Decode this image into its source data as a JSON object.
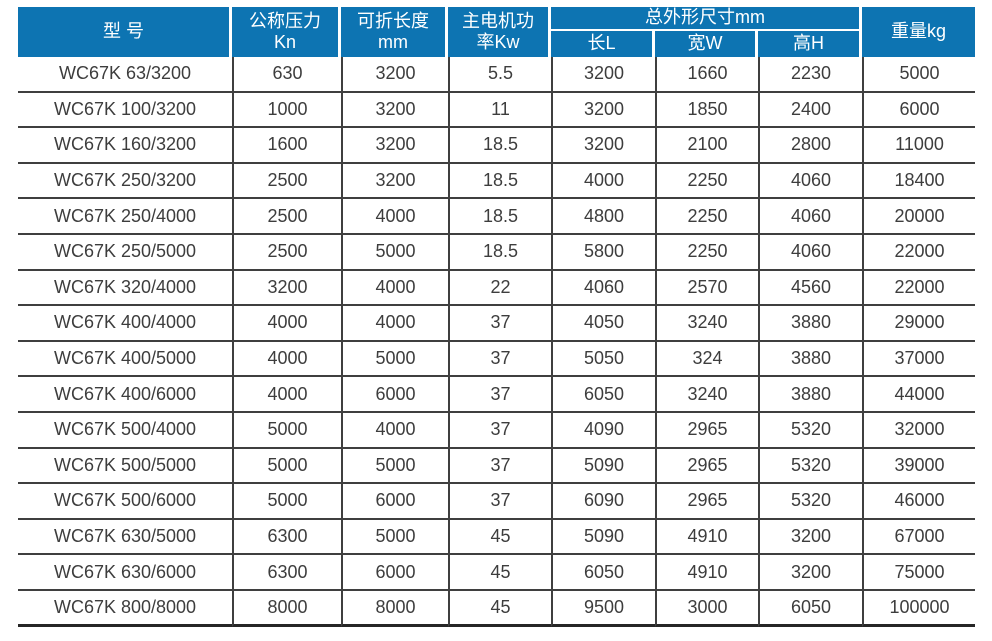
{
  "table": {
    "title_semantic": "WC67K press brake specification table",
    "columns": {
      "model": {
        "label": "型 号"
      },
      "pressure": {
        "line1": "公称压力",
        "line2": "Kn"
      },
      "fold_length": {
        "line1": "可折长度",
        "line2": "mm"
      },
      "motor_power": {
        "line1": "主电机功",
        "line2": "率Kw"
      },
      "dimensions": {
        "label": "总外形尺寸mm",
        "sub": [
          "长L",
          "宽W",
          "高H"
        ]
      },
      "weight": {
        "label": "重量kg"
      }
    },
    "rows": [
      [
        "WC67K 63/3200",
        "630",
        "3200",
        "5.5",
        "3200",
        "1660",
        "2230",
        "5000"
      ],
      [
        "WC67K 100/3200",
        "1000",
        "3200",
        "11",
        "3200",
        "1850",
        "2400",
        "6000"
      ],
      [
        "WC67K 160/3200",
        "1600",
        "3200",
        "18.5",
        "3200",
        "2100",
        "2800",
        "11000"
      ],
      [
        "WC67K 250/3200",
        "2500",
        "3200",
        "18.5",
        "4000",
        "2250",
        "4060",
        "18400"
      ],
      [
        "WC67K 250/4000",
        "2500",
        "4000",
        "18.5",
        "4800",
        "2250",
        "4060",
        "20000"
      ],
      [
        "WC67K 250/5000",
        "2500",
        "5000",
        "18.5",
        "5800",
        "2250",
        "4060",
        "22000"
      ],
      [
        "WC67K 320/4000",
        "3200",
        "4000",
        "22",
        "4060",
        "2570",
        "4560",
        "22000"
      ],
      [
        "WC67K 400/4000",
        "4000",
        "4000",
        "37",
        "4050",
        "3240",
        "3880",
        "29000"
      ],
      [
        "WC67K 400/5000",
        "4000",
        "5000",
        "37",
        "5050",
        "324",
        "3880",
        "37000"
      ],
      [
        "WC67K 400/6000",
        "4000",
        "6000",
        "37",
        "6050",
        "3240",
        "3880",
        "44000"
      ],
      [
        "WC67K 500/4000",
        "5000",
        "4000",
        "37",
        "4090",
        "2965",
        "5320",
        "32000"
      ],
      [
        "WC67K 500/5000",
        "5000",
        "5000",
        "37",
        "5090",
        "2965",
        "5320",
        "39000"
      ],
      [
        "WC67K 500/6000",
        "5000",
        "6000",
        "37",
        "6090",
        "2965",
        "5320",
        "46000"
      ],
      [
        "WC67K 630/5000",
        "6300",
        "5000",
        "45",
        "5090",
        "4910",
        "3200",
        "67000"
      ],
      [
        "WC67K 630/6000",
        "6300",
        "6000",
        "45",
        "6050",
        "4910",
        "3200",
        "75000"
      ],
      [
        "WC67K 800/8000",
        "8000",
        "8000",
        "45",
        "9500",
        "3000",
        "6050",
        "100000"
      ]
    ]
  },
  "colors": {
    "header_bg": "#0d74b2",
    "header_text": "#ffffff",
    "body_text": "#3d3d3d",
    "grid_line": "#3f3f3f"
  }
}
